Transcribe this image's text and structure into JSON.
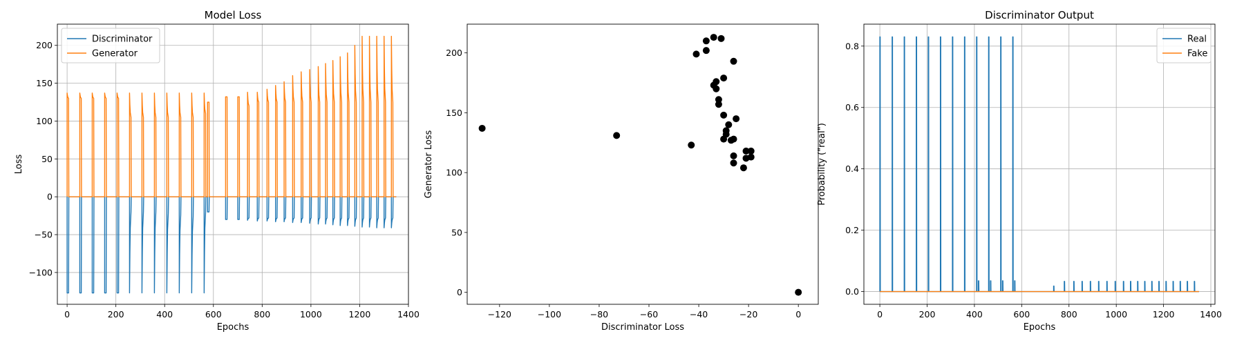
{
  "chart_data": [
    {
      "type": "line",
      "title": "Model Loss",
      "xlabel": "Epochs",
      "ylabel": "Loss",
      "xlim": [
        -40,
        1400
      ],
      "ylim": [
        -142,
        228
      ],
      "xticks": [
        0,
        200,
        400,
        600,
        800,
        1000,
        1200,
        1400
      ],
      "yticks": [
        -100,
        -50,
        0,
        50,
        100,
        150,
        200
      ],
      "grid": true,
      "legend": "top-left",
      "series": [
        {
          "name": "Discriminator",
          "color": "#1f77b4",
          "baseline": 0,
          "dips": [
            {
              "x": 0,
              "y": -127,
              "tail": -127
            },
            {
              "x": 52,
              "y": -127,
              "tail": -127
            },
            {
              "x": 103,
              "y": -127,
              "tail": -127
            },
            {
              "x": 154,
              "y": -127,
              "tail": -127
            },
            {
              "x": 205,
              "y": -127,
              "tail": -127
            },
            {
              "x": 256,
              "y": -127,
              "tail": -20
            },
            {
              "x": 307,
              "y": -127,
              "tail": -20
            },
            {
              "x": 358,
              "y": -127,
              "tail": -20
            },
            {
              "x": 409,
              "y": -127,
              "tail": -22
            },
            {
              "x": 460,
              "y": -127,
              "tail": -24
            },
            {
              "x": 511,
              "y": -127,
              "tail": -26
            },
            {
              "x": 562,
              "y": -127,
              "tail": -20
            },
            {
              "x": 576,
              "y": -20,
              "tail": -20
            },
            {
              "x": 650,
              "y": -30,
              "tail": -30
            },
            {
              "x": 700,
              "y": -30,
              "tail": -30
            },
            {
              "x": 740,
              "y": -31,
              "tail": -28
            },
            {
              "x": 780,
              "y": -32,
              "tail": -28
            },
            {
              "x": 820,
              "y": -32,
              "tail": -28
            },
            {
              "x": 855,
              "y": -33,
              "tail": -28
            },
            {
              "x": 890,
              "y": -33,
              "tail": -28
            },
            {
              "x": 925,
              "y": -34,
              "tail": -28
            },
            {
              "x": 960,
              "y": -34,
              "tail": -28
            },
            {
              "x": 995,
              "y": -35,
              "tail": -28
            },
            {
              "x": 1030,
              "y": -36,
              "tail": -28
            },
            {
              "x": 1060,
              "y": -36,
              "tail": -28
            },
            {
              "x": 1090,
              "y": -37,
              "tail": -28
            },
            {
              "x": 1120,
              "y": -38,
              "tail": -28
            },
            {
              "x": 1150,
              "y": -38,
              "tail": -28
            },
            {
              "x": 1180,
              "y": -39,
              "tail": -28
            },
            {
              "x": 1210,
              "y": -40,
              "tail": -28
            },
            {
              "x": 1240,
              "y": -40,
              "tail": -28
            },
            {
              "x": 1270,
              "y": -41,
              "tail": -28
            },
            {
              "x": 1300,
              "y": -41,
              "tail": -28
            },
            {
              "x": 1330,
              "y": -41,
              "tail": -28
            }
          ]
        },
        {
          "name": "Generator",
          "color": "#ff7f0e",
          "baseline": 0,
          "spikes": [
            {
              "x": 0,
              "y": 137,
              "tail": 130
            },
            {
              "x": 52,
              "y": 137,
              "tail": 130
            },
            {
              "x": 103,
              "y": 137,
              "tail": 130
            },
            {
              "x": 154,
              "y": 137,
              "tail": 130
            },
            {
              "x": 205,
              "y": 137,
              "tail": 130
            },
            {
              "x": 256,
              "y": 137,
              "tail": 105
            },
            {
              "x": 307,
              "y": 137,
              "tail": 105
            },
            {
              "x": 358,
              "y": 137,
              "tail": 105
            },
            {
              "x": 409,
              "y": 137,
              "tail": 105
            },
            {
              "x": 460,
              "y": 137,
              "tail": 105
            },
            {
              "x": 511,
              "y": 137,
              "tail": 105
            },
            {
              "x": 562,
              "y": 137,
              "tail": 110
            },
            {
              "x": 576,
              "y": 125,
              "tail": 125
            },
            {
              "x": 650,
              "y": 132,
              "tail": 132
            },
            {
              "x": 700,
              "y": 132,
              "tail": 132
            },
            {
              "x": 740,
              "y": 138,
              "tail": 120
            },
            {
              "x": 780,
              "y": 138,
              "tail": 125
            },
            {
              "x": 820,
              "y": 142,
              "tail": 125
            },
            {
              "x": 855,
              "y": 147,
              "tail": 125
            },
            {
              "x": 890,
              "y": 152,
              "tail": 125
            },
            {
              "x": 925,
              "y": 160,
              "tail": 125
            },
            {
              "x": 960,
              "y": 165,
              "tail": 125
            },
            {
              "x": 995,
              "y": 168,
              "tail": 125
            },
            {
              "x": 1030,
              "y": 172,
              "tail": 125
            },
            {
              "x": 1060,
              "y": 176,
              "tail": 125
            },
            {
              "x": 1090,
              "y": 180,
              "tail": 125
            },
            {
              "x": 1120,
              "y": 185,
              "tail": 125
            },
            {
              "x": 1150,
              "y": 190,
              "tail": 125
            },
            {
              "x": 1180,
              "y": 200,
              "tail": 125
            },
            {
              "x": 1210,
              "y": 212,
              "tail": 125
            },
            {
              "x": 1240,
              "y": 212,
              "tail": 125
            },
            {
              "x": 1270,
              "y": 212,
              "tail": 125
            },
            {
              "x": 1300,
              "y": 212,
              "tail": 125
            },
            {
              "x": 1330,
              "y": 212,
              "tail": 125
            }
          ]
        }
      ],
      "x_end": 1350
    },
    {
      "type": "scatter",
      "title": "",
      "xlabel": "Discriminator Loss",
      "ylabel": "Generator Loss",
      "xlim": [
        -133,
        8
      ],
      "ylim": [
        -10,
        224
      ],
      "xticks": [
        -120,
        -100,
        -80,
        -60,
        -40,
        -20,
        0
      ],
      "yticks": [
        0,
        50,
        100,
        150,
        200
      ],
      "grid": false,
      "color": "#000000",
      "points": [
        {
          "x": -127,
          "y": 137
        },
        {
          "x": -73,
          "y": 131
        },
        {
          "x": -43,
          "y": 123
        },
        {
          "x": -41,
          "y": 199
        },
        {
          "x": -37,
          "y": 210
        },
        {
          "x": -37,
          "y": 202
        },
        {
          "x": -34,
          "y": 213
        },
        {
          "x": -31,
          "y": 212
        },
        {
          "x": -34,
          "y": 173
        },
        {
          "x": -33,
          "y": 176
        },
        {
          "x": -33,
          "y": 170
        },
        {
          "x": -32,
          "y": 161
        },
        {
          "x": -32,
          "y": 157
        },
        {
          "x": -30,
          "y": 179
        },
        {
          "x": -26,
          "y": 193
        },
        {
          "x": -30,
          "y": 148
        },
        {
          "x": -28,
          "y": 140
        },
        {
          "x": -29,
          "y": 135
        },
        {
          "x": -29,
          "y": 132
        },
        {
          "x": -30,
          "y": 128
        },
        {
          "x": -25,
          "y": 145
        },
        {
          "x": -26,
          "y": 128
        },
        {
          "x": -27,
          "y": 127
        },
        {
          "x": -26,
          "y": 114
        },
        {
          "x": -26,
          "y": 108
        },
        {
          "x": -21,
          "y": 118
        },
        {
          "x": -19,
          "y": 118
        },
        {
          "x": -21,
          "y": 112
        },
        {
          "x": -19,
          "y": 113
        },
        {
          "x": -22,
          "y": 104
        },
        {
          "x": 0,
          "y": 0
        }
      ]
    },
    {
      "type": "line",
      "title": "Discriminator Output",
      "xlabel": "Epochs",
      "ylabel": "Probability (\"real\")",
      "xlim": [
        -67.5,
        1417.5
      ],
      "ylim": [
        -0.0415,
        0.8715
      ],
      "xticks": [
        0,
        200,
        400,
        600,
        800,
        1000,
        1200,
        1400
      ],
      "yticks": [
        0.0,
        0.2,
        0.4,
        0.6,
        0.8
      ],
      "grid": true,
      "legend": "top-right",
      "series": [
        {
          "name": "Real",
          "color": "#1f77b4",
          "baseline": 0,
          "spikes": [
            {
              "x": 0,
              "y": 0.83
            },
            {
              "x": 52,
              "y": 0.83
            },
            {
              "x": 103,
              "y": 0.83
            },
            {
              "x": 154,
              "y": 0.83
            },
            {
              "x": 205,
              "y": 0.83
            },
            {
              "x": 256,
              "y": 0.83
            },
            {
              "x": 307,
              "y": 0.83
            },
            {
              "x": 358,
              "y": 0.83
            },
            {
              "x": 409,
              "y": 0.83
            },
            {
              "x": 417,
              "y": 0.035
            },
            {
              "x": 460,
              "y": 0.83
            },
            {
              "x": 468,
              "y": 0.035
            },
            {
              "x": 511,
              "y": 0.83
            },
            {
              "x": 519,
              "y": 0.035
            },
            {
              "x": 562,
              "y": 0.83
            },
            {
              "x": 570,
              "y": 0.035
            },
            {
              "x": 735,
              "y": 0.018
            },
            {
              "x": 780,
              "y": 0.033
            },
            {
              "x": 820,
              "y": 0.033
            },
            {
              "x": 855,
              "y": 0.033
            },
            {
              "x": 890,
              "y": 0.033
            },
            {
              "x": 925,
              "y": 0.033
            },
            {
              "x": 960,
              "y": 0.033
            },
            {
              "x": 995,
              "y": 0.033
            },
            {
              "x": 1030,
              "y": 0.033
            },
            {
              "x": 1060,
              "y": 0.033
            },
            {
              "x": 1090,
              "y": 0.033
            },
            {
              "x": 1120,
              "y": 0.033
            },
            {
              "x": 1150,
              "y": 0.033
            },
            {
              "x": 1180,
              "y": 0.033
            },
            {
              "x": 1210,
              "y": 0.033
            },
            {
              "x": 1240,
              "y": 0.033
            },
            {
              "x": 1270,
              "y": 0.033
            },
            {
              "x": 1300,
              "y": 0.033
            },
            {
              "x": 1330,
              "y": 0.033
            }
          ]
        },
        {
          "name": "Fake",
          "color": "#ff7f0e",
          "baseline": 0,
          "spikes": []
        }
      ],
      "x_end": 1350
    }
  ]
}
